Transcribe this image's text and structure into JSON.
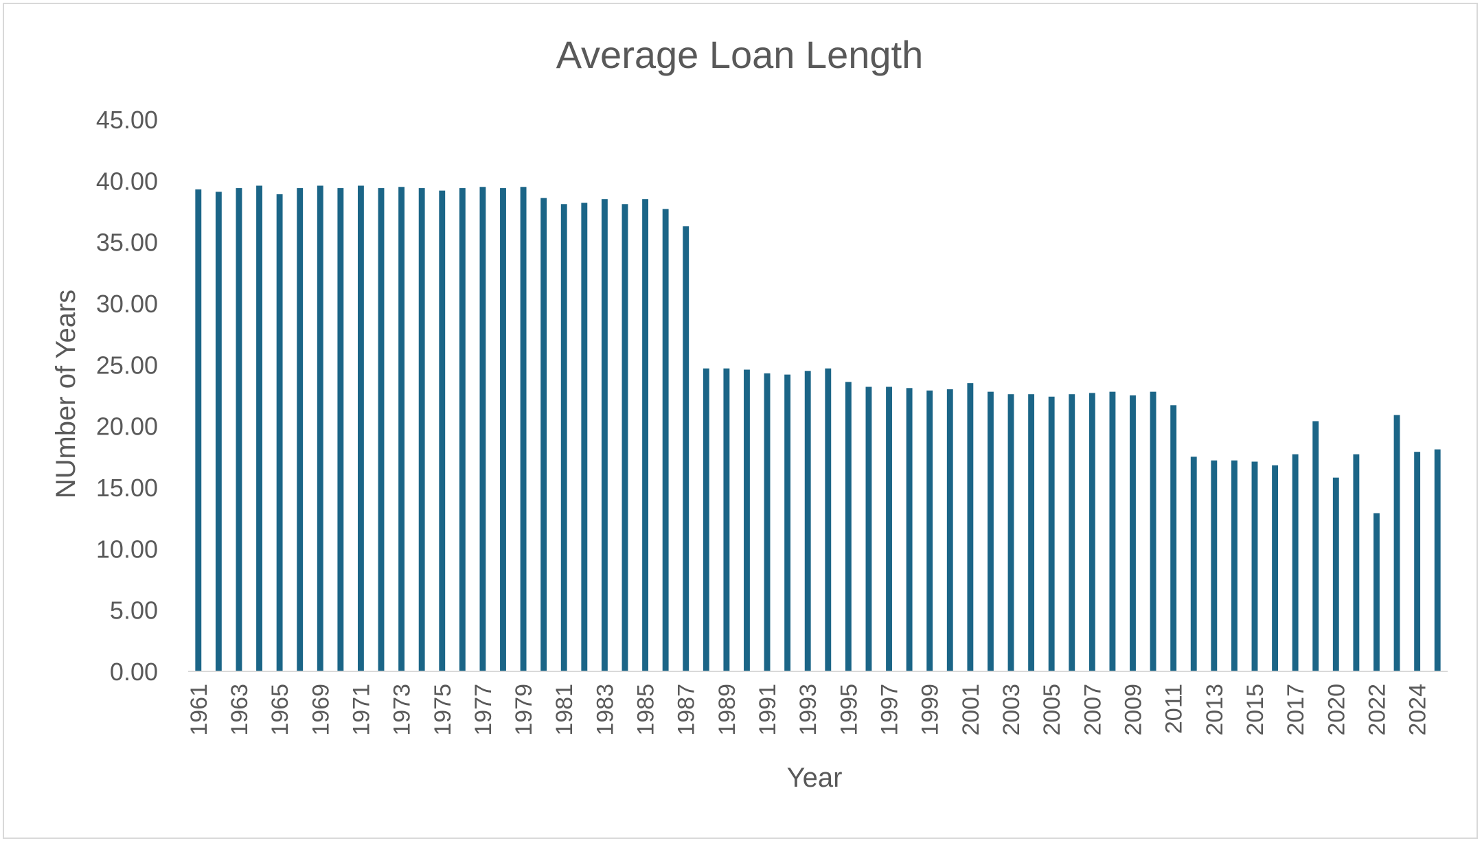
{
  "chart_data": {
    "type": "bar",
    "title": "Average Loan Length",
    "xlabel": "Year",
    "ylabel": "NUmber of Years",
    "ylim": [
      0,
      45
    ],
    "yticks": [
      "0.00",
      "5.00",
      "10.00",
      "15.00",
      "20.00",
      "25.00",
      "30.00",
      "35.00",
      "40.00",
      "45.00"
    ],
    "grid": false,
    "legend": "none",
    "bar_color": "#1b6587",
    "categories": [
      "1961",
      "1962",
      "1963",
      "1964",
      "1965",
      "1966",
      "1969",
      "1970",
      "1971",
      "1972",
      "1973",
      "1974",
      "1975",
      "1976",
      "1977",
      "1978",
      "1979",
      "1980",
      "1981",
      "1982",
      "1983",
      "1984",
      "1985",
      "1986",
      "1987",
      "1988",
      "1989",
      "1990",
      "1991",
      "1992",
      "1993",
      "1994",
      "1995",
      "1996",
      "1997",
      "1998",
      "1999",
      "2000",
      "2001",
      "2002",
      "2003",
      "2004",
      "2005",
      "2006",
      "2007",
      "2008",
      "2009",
      "2010",
      "2011",
      "2012",
      "2013",
      "2014",
      "2015",
      "2016",
      "2017",
      "2019",
      "2020",
      "2021",
      "2022",
      "2023",
      "2024",
      "2025"
    ],
    "visible_tick_labels": [
      "1961",
      "1963",
      "1965",
      "1969",
      "1971",
      "1973",
      "1975",
      "1977",
      "1979",
      "1981",
      "1983",
      "1985",
      "1987",
      "1989",
      "1991",
      "1993",
      "1995",
      "1997",
      "1999",
      "2001",
      "2003",
      "2005",
      "2007",
      "2009",
      "2011",
      "2013",
      "2015",
      "2017",
      "2020",
      "2022",
      "2024"
    ],
    "values": [
      39.3,
      39.1,
      39.4,
      39.6,
      38.9,
      39.4,
      39.6,
      39.4,
      39.6,
      39.4,
      39.5,
      39.4,
      39.2,
      39.4,
      39.5,
      39.4,
      39.5,
      38.6,
      38.1,
      38.2,
      38.5,
      38.1,
      38.5,
      37.7,
      36.3,
      24.7,
      24.7,
      24.6,
      24.3,
      24.2,
      24.5,
      24.7,
      23.6,
      23.2,
      23.2,
      23.1,
      22.9,
      23.0,
      23.5,
      22.8,
      22.6,
      22.6,
      22.4,
      22.6,
      22.7,
      22.8,
      22.5,
      22.8,
      21.7,
      17.5,
      17.2,
      17.2,
      17.1,
      16.8,
      17.7,
      20.4,
      15.8,
      17.7,
      12.9,
      20.9,
      17.9,
      18.1
    ]
  }
}
